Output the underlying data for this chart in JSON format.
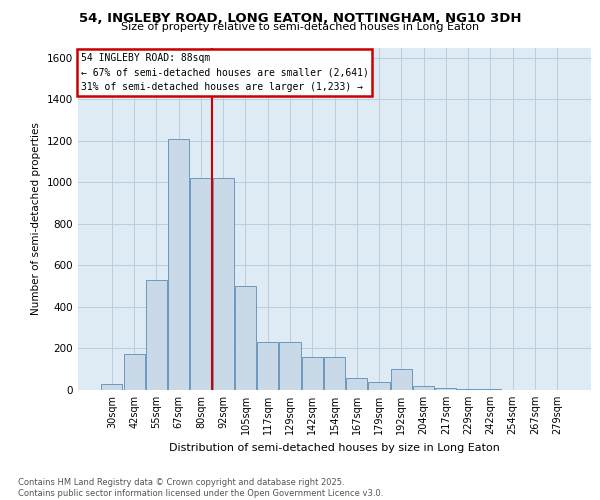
{
  "title_line1": "54, INGLEBY ROAD, LONG EATON, NOTTINGHAM, NG10 3DH",
  "title_line2": "Size of property relative to semi-detached houses in Long Eaton",
  "xlabel": "Distribution of semi-detached houses by size in Long Eaton",
  "ylabel": "Number of semi-detached properties",
  "categories": [
    "30sqm",
    "42sqm",
    "55sqm",
    "67sqm",
    "80sqm",
    "92sqm",
    "105sqm",
    "117sqm",
    "129sqm",
    "142sqm",
    "154sqm",
    "167sqm",
    "179sqm",
    "192sqm",
    "204sqm",
    "217sqm",
    "229sqm",
    "242sqm",
    "254sqm",
    "267sqm",
    "279sqm"
  ],
  "values": [
    30,
    175,
    530,
    1210,
    1020,
    1020,
    500,
    230,
    230,
    160,
    160,
    60,
    40,
    100,
    20,
    10,
    5,
    3,
    2,
    1,
    1
  ],
  "bar_color": "#c9d9e8",
  "bar_edge_color": "#5b8db8",
  "grid_color": "#c8d8e8",
  "background_color": "#deeaf4",
  "annotation_box_text": "54 INGLEBY ROAD: 88sqm\n← 67% of semi-detached houses are smaller (2,641)\n31% of semi-detached houses are larger (1,233) →",
  "annotation_box_color": "#cc0000",
  "property_line_color": "#cc0000",
  "footer_text": "Contains HM Land Registry data © Crown copyright and database right 2025.\nContains public sector information licensed under the Open Government Licence v3.0.",
  "ylim": [
    0,
    1650
  ],
  "yticks": [
    0,
    200,
    400,
    600,
    800,
    1000,
    1200,
    1400,
    1600
  ]
}
